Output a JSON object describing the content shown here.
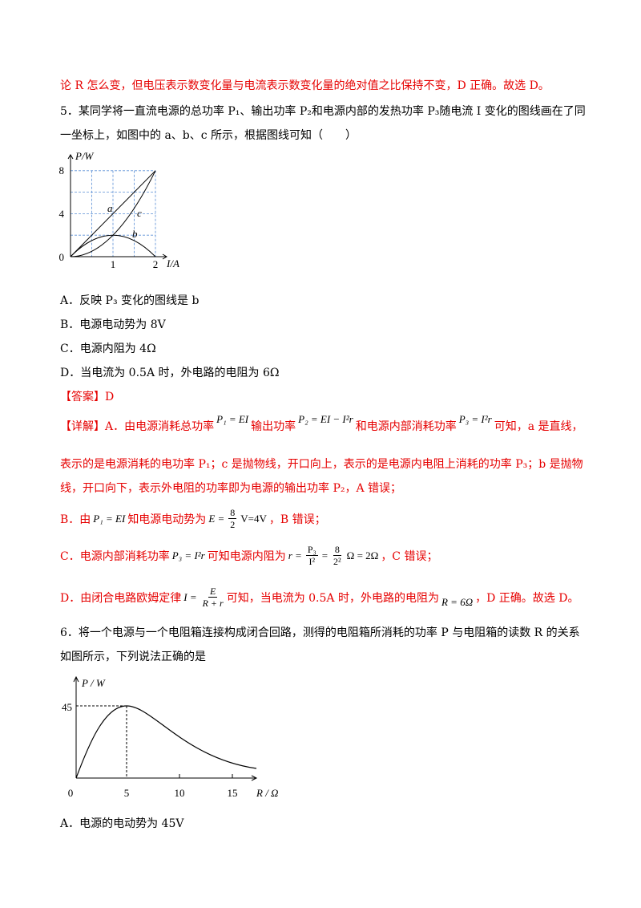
{
  "continuation": "论 R 怎么变，但电压表示数变化量与电流表示数变化量的绝对值之比保持不变，D 正确。故选 D。",
  "q5": {
    "stem": [
      "5．某同学将一直流电源的总功率 P₁、输出功率 P₂和电源内部的发热功率 P₃随电流 I 变化的图线画在了同",
      "一坐标上，如图中的 a、b、c 所示，根据图线可知（　　）"
    ],
    "figure": {
      "y_label": "P/W",
      "x_label": "I/A",
      "y_ticks": [
        "8",
        "4",
        "0"
      ],
      "x_ticks": [
        "1",
        "2"
      ],
      "curve_labels": [
        "a",
        "c",
        "b"
      ]
    },
    "options": [
      "A．反映 P₃ 变化的图线是 b",
      "B．电源电动势为 8V",
      "C．电源内阻为 4Ω",
      "D．当电流为 0.5A 时，外电路的电阻为 6Ω"
    ],
    "answer": "【答案】D",
    "detail": {
      "l1": [
        "【详解】A．由电源消耗总功率",
        "P₁ = EI",
        "输出功率",
        "P₂ = EI − I²r",
        "和电源内部消耗功率",
        "P₃ = I²r",
        "可知，a 是直线，"
      ],
      "l2": "表示的是电源消耗的电功率 P₁；c 是抛物线，开口向上，表示的是电源内电阻上消耗的功率 P₃；b 是抛物",
      "l3": "线，开口向下，表示外电阻的功率即为电源的输出功率 P₂，A 错误；",
      "b": {
        "pre": "B．由",
        "f1": "P₁ = EI",
        "mid": "知电源电动势为",
        "lhs": "E =",
        "num": "8",
        "den": "2",
        "rhs": "V=4V",
        "post": "，B 错误；"
      },
      "c": {
        "pre": "C．电源内部消耗功率",
        "f1": "P₃ = I²r",
        "mid": "可知电源内阻为",
        "lhs": "r =",
        "num1": "P₃",
        "den1": "I²",
        "eq": "=",
        "num2": "8",
        "den2": "2²",
        "rhs": "Ω = 2Ω",
        "post": "，C 错误；"
      },
      "d": {
        "pre": "D．由闭合电路欧姆定律",
        "lhs": "I =",
        "num": "E",
        "den": "R + r",
        "mid": "可知，当电流为 0.5A 时，外电路的电阻为",
        "f1": "R = 6Ω",
        "post": "，D 正确。故选 D。"
      }
    }
  },
  "q6": {
    "stem": [
      "6．将一个电源与一个电阻箱连接构成闭合回路，测得的电阻箱所消耗的功率 P 与电阻箱的读数 R 的关系",
      "如图所示，下列说法正确的是"
    ],
    "figure": {
      "y_label": "P / W",
      "x_label": "R / Ω",
      "y_ticks": [
        "45"
      ],
      "x_ticks": [
        "0",
        "5",
        "10",
        "15"
      ]
    },
    "options": [
      "A．电源的电动势为 45V"
    ]
  }
}
